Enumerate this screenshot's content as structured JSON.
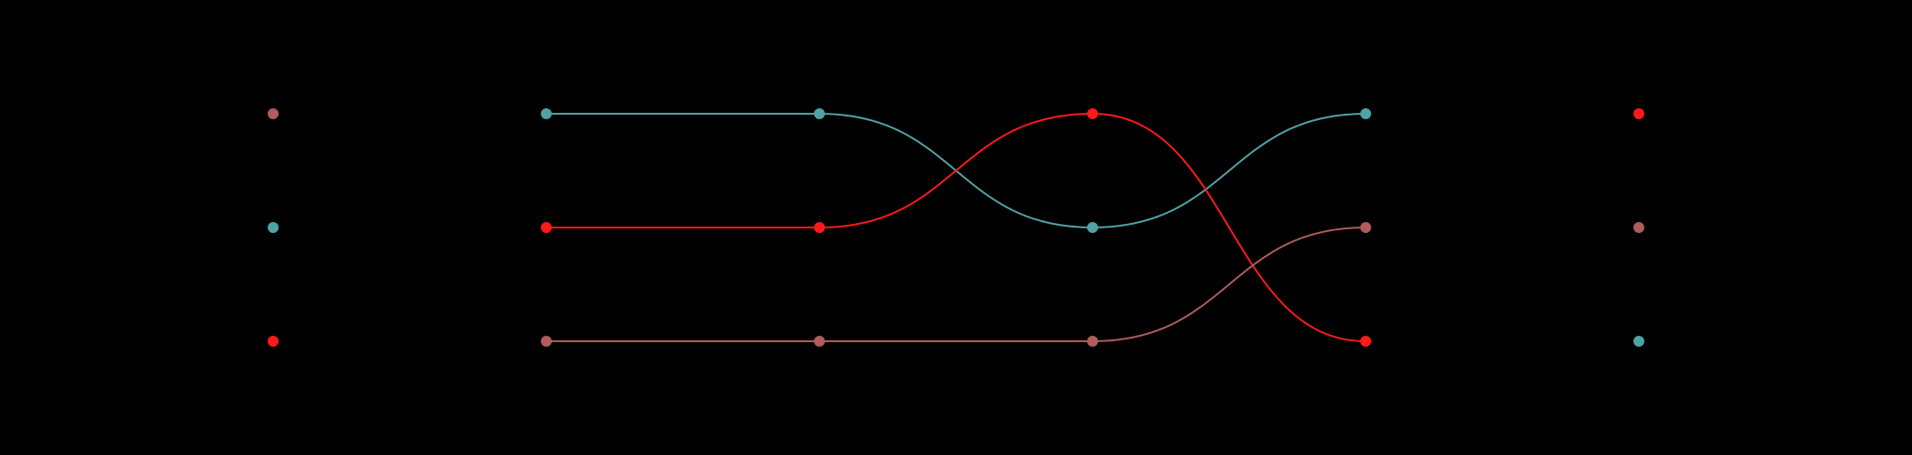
{
  "chart_data": {
    "type": "line",
    "chart_subtype": "bump",
    "title": "",
    "xlabel": "",
    "ylabel": "",
    "x": [
      1,
      2,
      3,
      4,
      5,
      6
    ],
    "ylim": [
      1,
      3
    ],
    "y_inverted": true,
    "grid": false,
    "legend": "none",
    "background": "#000000",
    "series": [
      {
        "color": "#4fa3a5",
        "ranks": [
          2,
          1,
          1,
          2,
          1,
          3
        ]
      },
      {
        "color": "#ff1a1a",
        "ranks": [
          3,
          2,
          2,
          1,
          3,
          1
        ]
      },
      {
        "color": "#b05c5c",
        "ranks": [
          1,
          3,
          3,
          3,
          2,
          2
        ]
      }
    ],
    "connected_x": [
      2,
      3,
      4,
      5
    ]
  }
}
